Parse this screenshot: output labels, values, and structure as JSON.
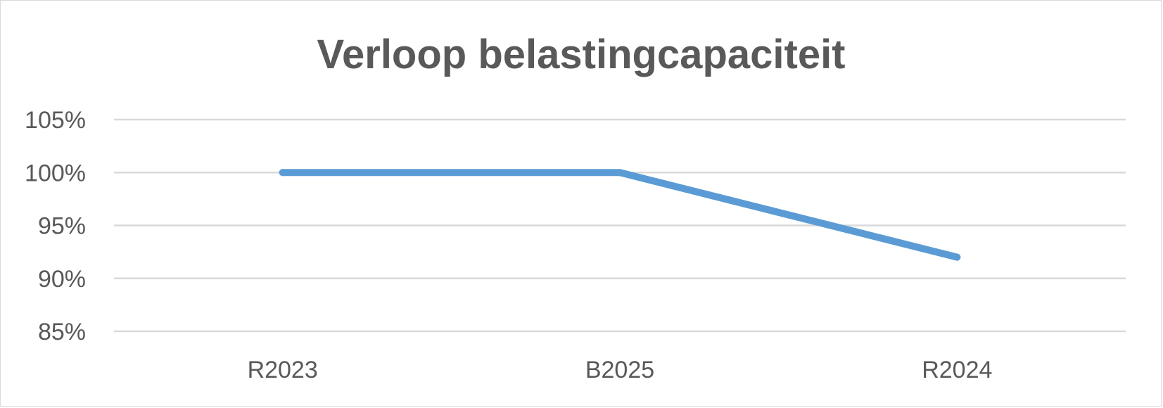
{
  "chart_data": {
    "type": "line",
    "title": "Verloop belastingcapaciteit",
    "categories": [
      "R2023",
      "B2025",
      "R2024"
    ],
    "series": [
      {
        "values": [
          100,
          100,
          92
        ],
        "color": "#5b9bd5"
      }
    ],
    "ylim": [
      85,
      105
    ],
    "yticks": [
      85,
      90,
      95,
      100,
      105
    ],
    "ytick_labels": [
      "85%",
      "90%",
      "95%",
      "100%",
      "105%"
    ],
    "xlabel": "",
    "ylabel": "",
    "grid": true,
    "legend": "none"
  }
}
